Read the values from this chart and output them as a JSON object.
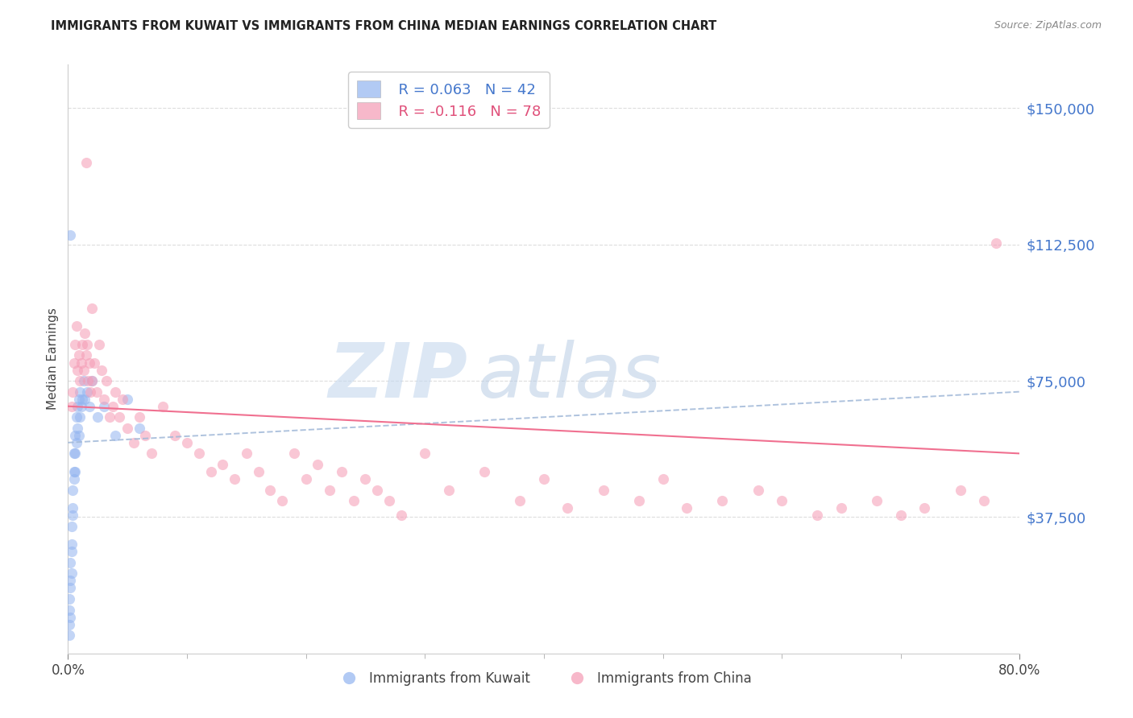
{
  "title": "IMMIGRANTS FROM KUWAIT VS IMMIGRANTS FROM CHINA MEDIAN EARNINGS CORRELATION CHART",
  "source": "Source: ZipAtlas.com",
  "ylabel": "Median Earnings",
  "yticks": [
    0,
    37500,
    75000,
    112500,
    150000
  ],
  "ytick_labels": [
    "",
    "$37,500",
    "$75,000",
    "$112,500",
    "$150,000"
  ],
  "xmin": 0.0,
  "xmax": 0.8,
  "ymin": 0,
  "ymax": 162000,
  "kuwait_R": 0.063,
  "kuwait_N": 42,
  "china_R": -0.116,
  "china_N": 78,
  "kuwait_color": "#92b4f0",
  "china_color": "#f59ab4",
  "trend_kuwait_color": "#8ab0e8",
  "trend_china_color": "#f07090",
  "watermark_part1": "ZIP",
  "watermark_part2": "atlas",
  "kuwait_x": [
    0.001,
    0.001,
    0.001,
    0.001,
    0.002,
    0.002,
    0.002,
    0.002,
    0.003,
    0.003,
    0.003,
    0.003,
    0.004,
    0.004,
    0.004,
    0.005,
    0.005,
    0.005,
    0.006,
    0.006,
    0.006,
    0.007,
    0.007,
    0.008,
    0.008,
    0.009,
    0.009,
    0.01,
    0.01,
    0.011,
    0.012,
    0.013,
    0.014,
    0.016,
    0.018,
    0.02,
    0.025,
    0.03,
    0.04,
    0.05,
    0.06,
    0.002
  ],
  "kuwait_y": [
    8000,
    12000,
    15000,
    5000,
    20000,
    25000,
    18000,
    10000,
    30000,
    35000,
    28000,
    22000,
    40000,
    45000,
    38000,
    50000,
    55000,
    48000,
    55000,
    60000,
    50000,
    58000,
    65000,
    62000,
    68000,
    60000,
    70000,
    65000,
    72000,
    68000,
    70000,
    75000,
    70000,
    72000,
    68000,
    75000,
    65000,
    68000,
    60000,
    70000,
    62000,
    115000
  ],
  "china_x": [
    0.003,
    0.004,
    0.005,
    0.006,
    0.007,
    0.008,
    0.009,
    0.01,
    0.011,
    0.012,
    0.013,
    0.014,
    0.015,
    0.016,
    0.017,
    0.018,
    0.019,
    0.02,
    0.022,
    0.024,
    0.026,
    0.028,
    0.03,
    0.032,
    0.035,
    0.038,
    0.04,
    0.043,
    0.046,
    0.05,
    0.055,
    0.06,
    0.065,
    0.07,
    0.08,
    0.09,
    0.1,
    0.11,
    0.12,
    0.13,
    0.14,
    0.15,
    0.16,
    0.17,
    0.18,
    0.19,
    0.2,
    0.21,
    0.22,
    0.23,
    0.24,
    0.25,
    0.26,
    0.27,
    0.28,
    0.3,
    0.32,
    0.35,
    0.38,
    0.4,
    0.42,
    0.45,
    0.48,
    0.5,
    0.52,
    0.55,
    0.58,
    0.6,
    0.63,
    0.65,
    0.68,
    0.7,
    0.72,
    0.75,
    0.77,
    0.78,
    0.015,
    0.02
  ],
  "china_y": [
    68000,
    72000,
    80000,
    85000,
    90000,
    78000,
    82000,
    75000,
    80000,
    85000,
    78000,
    88000,
    82000,
    85000,
    75000,
    80000,
    72000,
    75000,
    80000,
    72000,
    85000,
    78000,
    70000,
    75000,
    65000,
    68000,
    72000,
    65000,
    70000,
    62000,
    58000,
    65000,
    60000,
    55000,
    68000,
    60000,
    58000,
    55000,
    50000,
    52000,
    48000,
    55000,
    50000,
    45000,
    42000,
    55000,
    48000,
    52000,
    45000,
    50000,
    42000,
    48000,
    45000,
    42000,
    38000,
    55000,
    45000,
    50000,
    42000,
    48000,
    40000,
    45000,
    42000,
    48000,
    40000,
    42000,
    45000,
    42000,
    38000,
    40000,
    42000,
    38000,
    40000,
    45000,
    42000,
    113000,
    135000,
    95000
  ],
  "kuwait_trend_x": [
    0.0,
    0.8
  ],
  "kuwait_trend_y": [
    58000,
    72000
  ],
  "china_trend_x": [
    0.0,
    0.8
  ],
  "china_trend_y": [
    68000,
    55000
  ]
}
